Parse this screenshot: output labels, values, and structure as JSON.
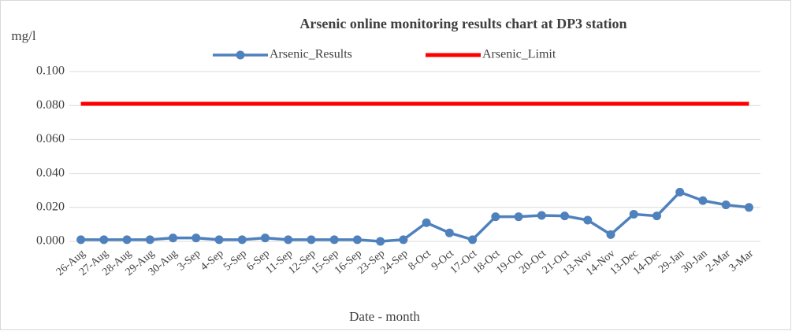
{
  "chart_data": {
    "type": "line",
    "title": "Arsenic online monitoring results chart at DP3 station",
    "y_axis_label": "mg/l",
    "x_axis_label": "Date - month",
    "categories": [
      "26-Aug",
      "27-Aug",
      "28-Aug",
      "29-Aug",
      "30-Aug",
      "3-Sep",
      "4-Sep",
      "5-Sep",
      "6-Sep",
      "11-Sep",
      "12-Sep",
      "15-Sep",
      "16-Sep",
      "23-Sep",
      "24-Sep",
      "8-Oct",
      "9-Oct",
      "17-Oct",
      "18-Oct",
      "19-Oct",
      "20-Oct",
      "21-Oct",
      "13-Nov",
      "14-Nov",
      "13-Dec",
      "14-Dec",
      "29-Jan",
      "30-Jan",
      "2-Mar",
      "3-Mar"
    ],
    "series": [
      {
        "name": "Arsenic_Results",
        "color": "#4f81bd",
        "marker": "circle",
        "values": [
          0.001,
          0.001,
          0.001,
          0.001,
          0.002,
          0.002,
          0.001,
          0.001,
          0.002,
          0.001,
          0.001,
          0.001,
          0.001,
          0.0,
          0.001,
          0.011,
          0.005,
          0.001,
          0.0145,
          0.0145,
          0.0153,
          0.015,
          0.0125,
          0.004,
          0.016,
          0.015,
          0.029,
          0.024,
          0.0215,
          0.02
        ]
      },
      {
        "name": "Arsenic_Limit",
        "color": "#ff0000",
        "marker": "none",
        "values": [
          0.081,
          0.081,
          0.081,
          0.081,
          0.081,
          0.081,
          0.081,
          0.081,
          0.081,
          0.081,
          0.081,
          0.081,
          0.081,
          0.081,
          0.081,
          0.081,
          0.081,
          0.081,
          0.081,
          0.081,
          0.081,
          0.081,
          0.081,
          0.081,
          0.081,
          0.081,
          0.081,
          0.081,
          0.081,
          0.081
        ]
      }
    ],
    "ylim": [
      0,
      0.1
    ],
    "yticks": [
      {
        "value": 0,
        "label": "0.000"
      },
      {
        "value": 0.02,
        "label": "0.020"
      },
      {
        "value": 0.04,
        "label": "0.040"
      },
      {
        "value": 0.06,
        "label": "0.060"
      },
      {
        "value": 0.08,
        "label": "0.080"
      },
      {
        "value": 0.1,
        "label": "0.100"
      }
    ],
    "grid": true,
    "legend": "top"
  }
}
